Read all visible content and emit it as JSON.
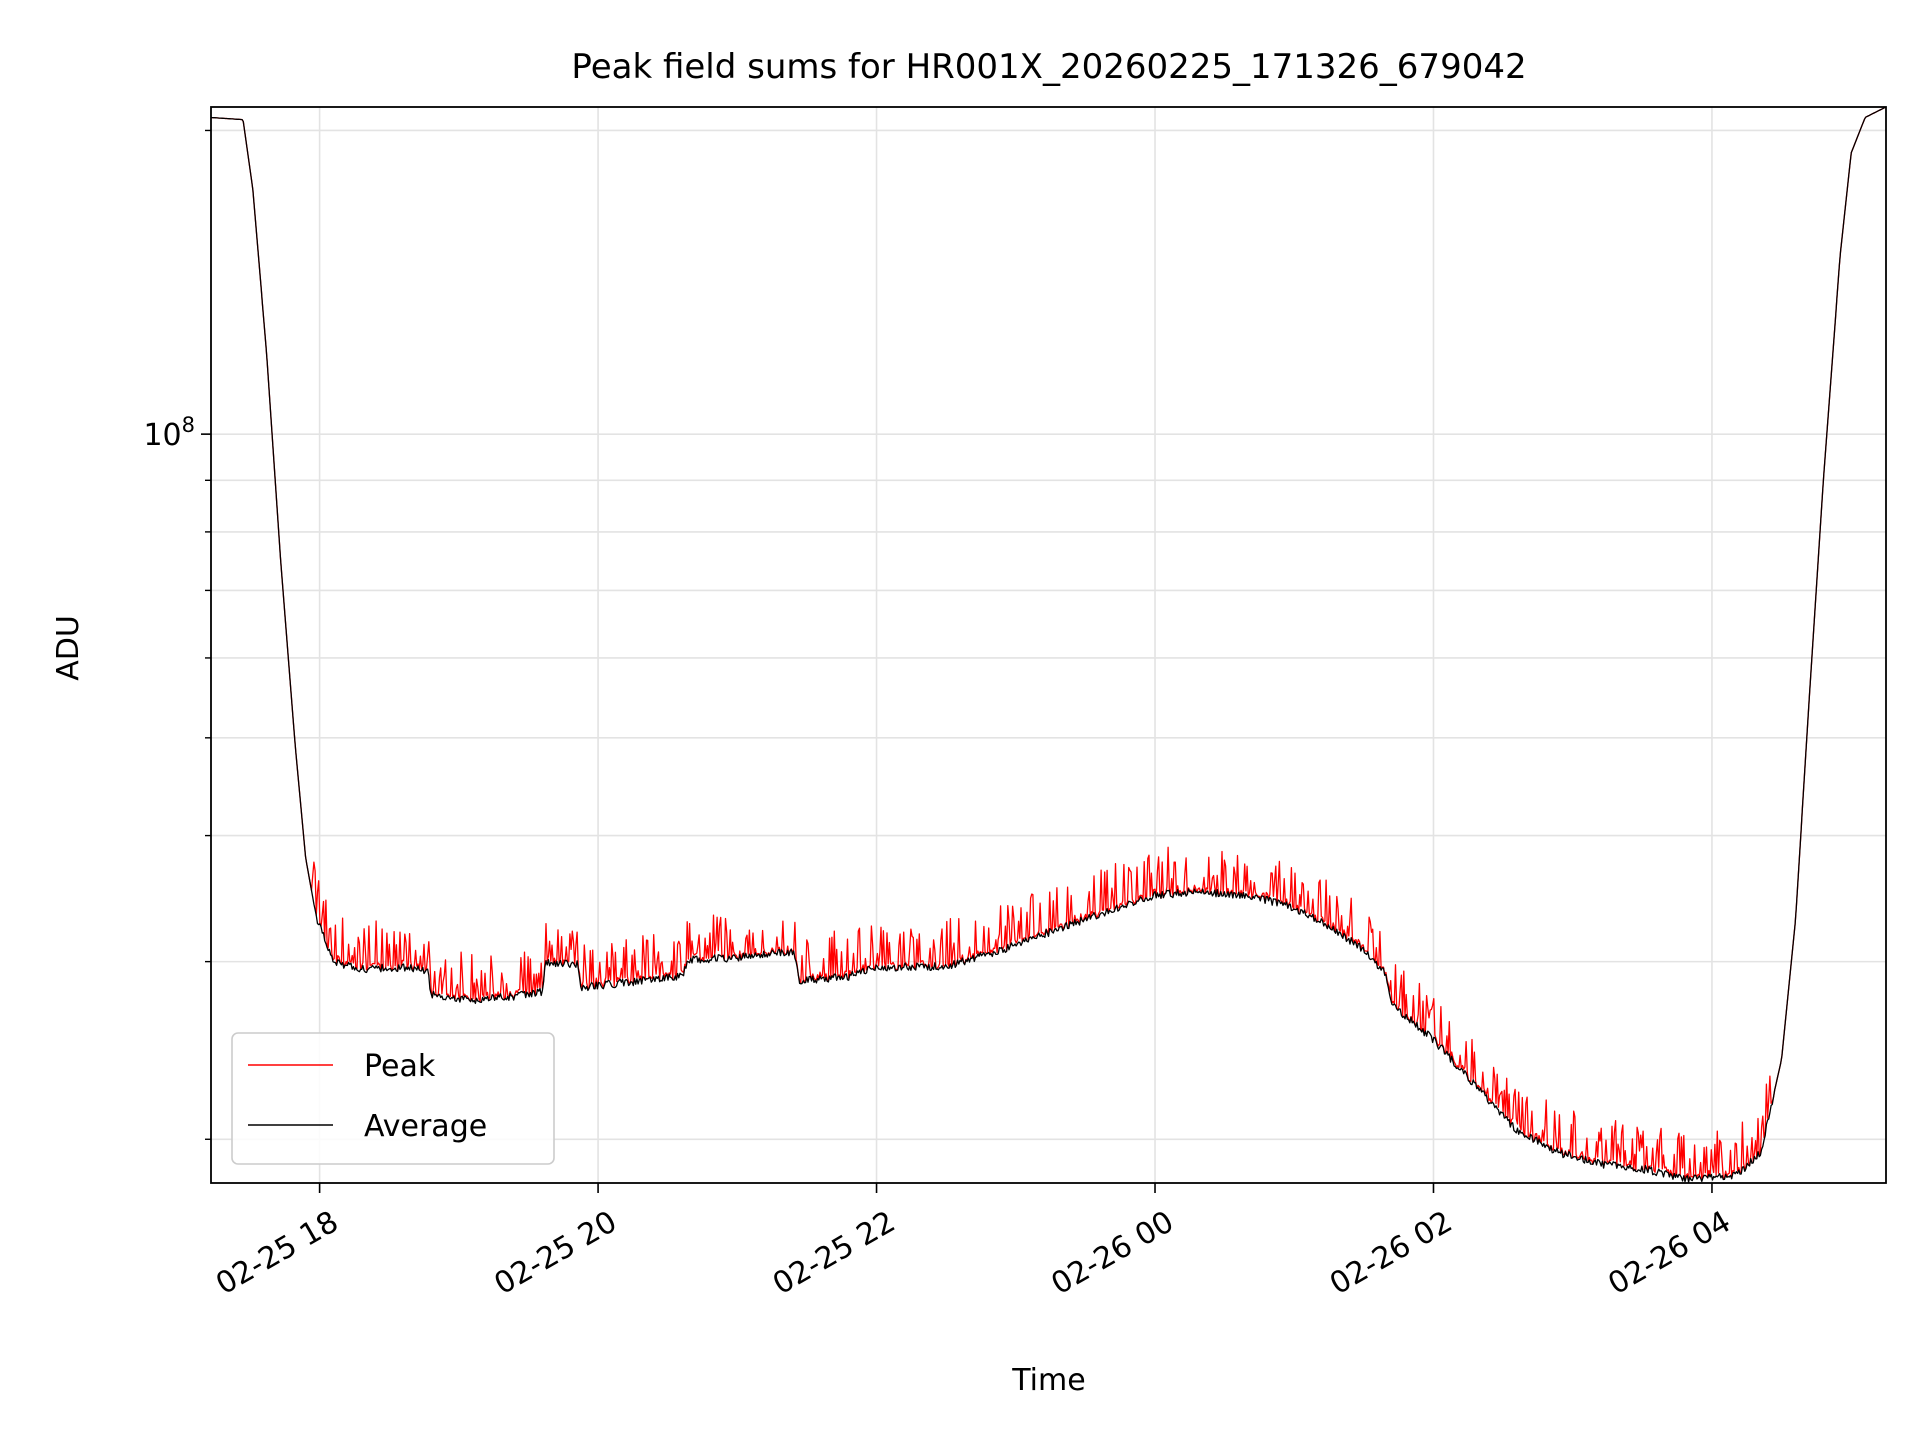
{
  "chart_data": {
    "type": "line",
    "title": "Peak field sums for HR001X_20260225_171326_679042",
    "xlabel": "Time",
    "ylabel": "ADU",
    "yscale": "log",
    "grid": true,
    "legend_position": "lower-left",
    "x_unit": "hours since 02-25 00:00",
    "xlim": [
      17.22,
      29.25
    ],
    "ylim": [
      18100000,
      211000000
    ],
    "x_ticks": [
      {
        "value": 18,
        "label": "02-25 18"
      },
      {
        "value": 20,
        "label": "02-25 20"
      },
      {
        "value": 22,
        "label": "02-25 22"
      },
      {
        "value": 24,
        "label": "02-26 00"
      },
      {
        "value": 26,
        "label": "02-26 02"
      },
      {
        "value": 28,
        "label": "02-26 04"
      }
    ],
    "y_major_tick": {
      "value": 100000000,
      "base": "10",
      "exp": "8"
    },
    "y_minor_ticks": [
      20000000,
      30000000,
      40000000,
      50000000,
      60000000,
      70000000,
      80000000,
      90000000,
      200000000
    ],
    "series": [
      {
        "name": "Peak",
        "color": "#ff0000"
      },
      {
        "name": "Average",
        "color": "#000000"
      }
    ],
    "average_points": [
      [
        17.22,
        206000000
      ],
      [
        17.45,
        205000000
      ],
      [
        17.52,
        175000000
      ],
      [
        17.62,
        120000000
      ],
      [
        17.72,
        75000000
      ],
      [
        17.82,
        50000000
      ],
      [
        17.9,
        38000000
      ],
      [
        17.98,
        33000000
      ],
      [
        18.1,
        30000000
      ],
      [
        18.3,
        29500000
      ],
      [
        18.6,
        29600000
      ],
      [
        18.78,
        29400000
      ],
      [
        18.8,
        27800000
      ],
      [
        19.1,
        27500000
      ],
      [
        19.4,
        27700000
      ],
      [
        19.6,
        28000000
      ],
      [
        19.62,
        29900000
      ],
      [
        19.85,
        29800000
      ],
      [
        19.88,
        28300000
      ],
      [
        20.3,
        28700000
      ],
      [
        20.6,
        29000000
      ],
      [
        20.65,
        30100000
      ],
      [
        21.0,
        30300000
      ],
      [
        21.4,
        30700000
      ],
      [
        21.45,
        28700000
      ],
      [
        21.8,
        29000000
      ],
      [
        22.0,
        29600000
      ],
      [
        22.5,
        29700000
      ],
      [
        22.9,
        30800000
      ],
      [
        23.3,
        32300000
      ],
      [
        23.7,
        33800000
      ],
      [
        24.0,
        34900000
      ],
      [
        24.3,
        35200000
      ],
      [
        24.6,
        34900000
      ],
      [
        24.9,
        34300000
      ],
      [
        25.2,
        32900000
      ],
      [
        25.5,
        30800000
      ],
      [
        25.65,
        29300000
      ],
      [
        25.7,
        27200000
      ],
      [
        26.0,
        25100000
      ],
      [
        26.3,
        22600000
      ],
      [
        26.6,
        20400000
      ],
      [
        26.9,
        19400000
      ],
      [
        27.2,
        18900000
      ],
      [
        27.5,
        18700000
      ],
      [
        27.8,
        18300000
      ],
      [
        28.0,
        18300000
      ],
      [
        28.2,
        18500000
      ],
      [
        28.35,
        19400000
      ],
      [
        28.5,
        24000000
      ],
      [
        28.6,
        33000000
      ],
      [
        28.7,
        55000000
      ],
      [
        28.8,
        90000000
      ],
      [
        28.92,
        150000000
      ],
      [
        29.0,
        190000000
      ],
      [
        29.1,
        206000000
      ],
      [
        29.25,
        211000000
      ]
    ]
  }
}
